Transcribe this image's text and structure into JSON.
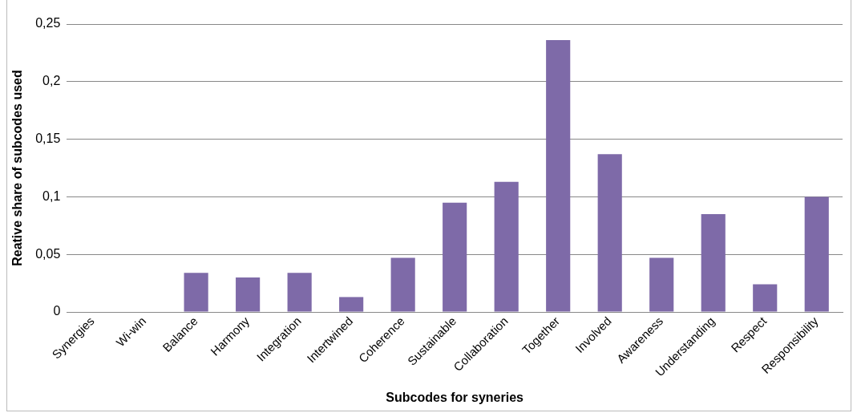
{
  "chart_data": {
    "type": "bar",
    "xlabel": "Subcodes for syneries",
    "ylabel": "Reative share of subcodes used",
    "categories": [
      "Synergies",
      "Wi-win",
      "Balance",
      "Harmony",
      "Integration",
      "Intertwined",
      "Coherence",
      "Sustainable",
      "Collaboration",
      "Together",
      "Involved",
      "Awareness",
      "Understanding",
      "Respect",
      "Responsibility"
    ],
    "values": [
      0,
      0,
      0.034,
      0.03,
      0.034,
      0.013,
      0.047,
      0.095,
      0.113,
      0.236,
      0.137,
      0.047,
      0.085,
      0.024,
      0.1
    ],
    "color": "#7e6aa8",
    "ylim": [
      0,
      0.25
    ],
    "yticks": [
      {
        "value": 0,
        "label": "0"
      },
      {
        "value": 0.05,
        "label": "0,05"
      },
      {
        "value": 0.1,
        "label": "0,1"
      },
      {
        "value": 0.15,
        "label": "0,15"
      },
      {
        "value": 0.2,
        "label": "0,2"
      },
      {
        "value": 0.25,
        "label": "0,25"
      }
    ],
    "grid": "y"
  }
}
